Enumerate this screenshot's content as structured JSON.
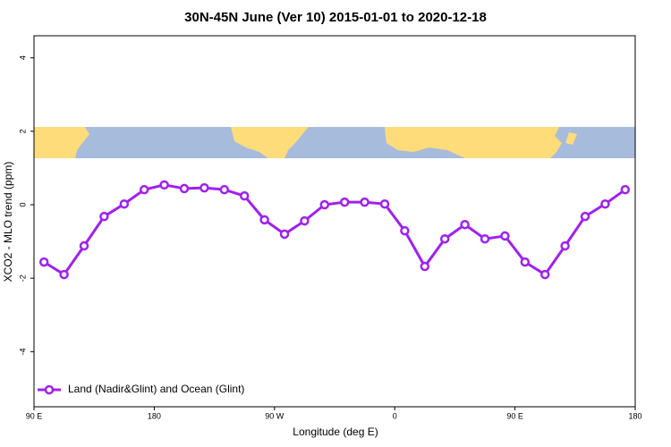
{
  "chart_data": {
    "type": "line",
    "title": "30N-45N June (Ver 10)   2015-01-01 to 2020-12-18",
    "xlabel": "Longitude (deg E)",
    "ylabel": "XCO2 - MLO trend (ppm)",
    "x": [
      97.5,
      112.5,
      127.5,
      142.5,
      157.5,
      172.5,
      187.5,
      202.5,
      217.5,
      232.5,
      247.5,
      262.5,
      277.5,
      292.5,
      307.5,
      322.5,
      337.5,
      352.5,
      367.5,
      382.5,
      397.5,
      412.5,
      427.5,
      442.5,
      457.5,
      472.5,
      487.5,
      502.5,
      517.5,
      532.5
    ],
    "series": [
      {
        "name": "Land (Nadir&Glint) and Ocean (Glint)",
        "color": "#a020f0",
        "values": [
          -1.56,
          -1.9,
          -1.12,
          -0.32,
          0.02,
          0.41,
          0.54,
          0.44,
          0.46,
          0.41,
          0.24,
          -0.41,
          -0.8,
          -0.44,
          0.0,
          0.07,
          0.07,
          0.02,
          -0.71,
          -1.68,
          -0.93,
          -0.54,
          -0.93,
          -0.85,
          -1.56,
          -1.9,
          -1.12,
          -0.32,
          0.02,
          0.41
        ]
      }
    ],
    "xlim": [
      90,
      540
    ],
    "xticks": [
      {
        "value": 90,
        "label": "90 E"
      },
      180,
      {
        "value": 270,
        "label": "90 W"
      },
      {
        "value": 360,
        "label": "0"
      },
      {
        "value": 450,
        "label": "90 E"
      },
      {
        "value": 540,
        "label": "180"
      }
    ],
    "ylim": [
      -5.5,
      4.6
    ],
    "yticks": [
      -4,
      -2,
      0,
      2,
      4
    ],
    "legend": "bottom-left"
  }
}
